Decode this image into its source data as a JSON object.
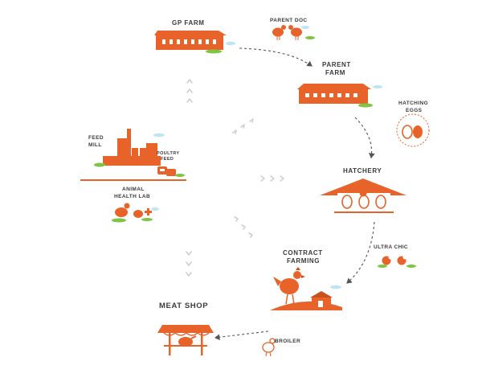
{
  "colors": {
    "orange": "#e8632a",
    "orange_dark": "#c9501c",
    "gray_arrow": "#cfcfcf",
    "dash": "#555555",
    "grass": "#7ec544",
    "cloud": "#bfe3f2",
    "text": "#3a3a3a"
  },
  "labels": {
    "gp_farm": "GP FARM",
    "parent_doc": "PARENT DOC",
    "parent_farm_1": "PARENT",
    "parent_farm_2": "FARM",
    "hatching_1": "HATCHING",
    "hatching_2": "EGGS",
    "feed_mill_1": "FEED",
    "feed_mill_2": "MILL",
    "poultry_feed_1": "POULTRY",
    "poultry_feed_2": "FEED",
    "animal_1": "ANIMAL",
    "animal_2": "HEALTH LAB",
    "hatchery": "HATCHERY",
    "ultra_chic": "ULTRA CHIC",
    "contract_1": "CONTRACT",
    "contract_2": "FARMING",
    "meat_shop": "MEAT SHOP",
    "broiler": "BROILER"
  },
  "icons": [
    "gp-farm-barn-icon",
    "parent-doc-hens-icon",
    "parent-farm-barn-icon",
    "hatching-eggs-icon",
    "feed-mill-icon",
    "poultry-feed-bags-icon",
    "animal-health-lab-icon",
    "hatchery-eggs-icon",
    "ultra-chic-chicks-icon",
    "contract-farming-rooster-icon",
    "meat-shop-stall-icon",
    "broiler-chicken-icon"
  ]
}
